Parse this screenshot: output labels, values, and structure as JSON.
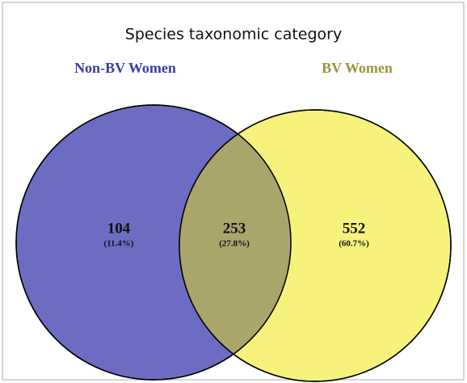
{
  "title": "Species taxonomic category",
  "sets": [
    {
      "name": "Non-BV Women",
      "color": "#3b3ba3",
      "fill": "#6c6dc2"
    },
    {
      "name": "BV Women",
      "color": "#9c9236",
      "fill": "#f6f27c"
    }
  ],
  "overlap_fill": "#a9a56b",
  "regions": [
    {
      "count": 104,
      "percent": "(11.4%)"
    },
    {
      "count": 253,
      "percent": "(27.8%)"
    },
    {
      "count": 552,
      "percent": "(60.7%)"
    }
  ]
}
